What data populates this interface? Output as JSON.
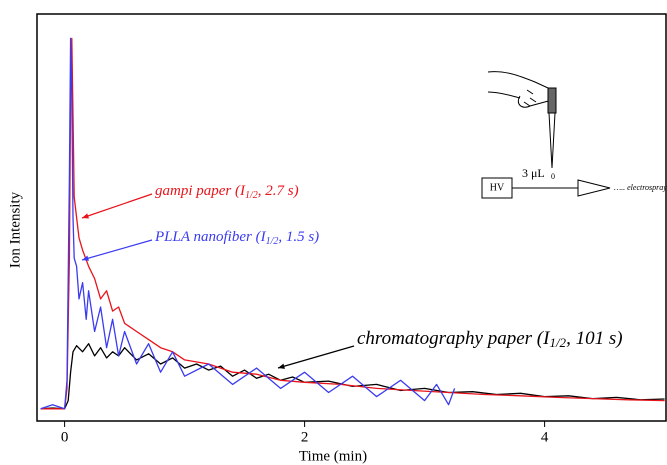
{
  "chart_data": {
    "type": "line",
    "xlabel": "Time (min)",
    "ylabel": "Ion Intensity",
    "xlim": [
      -0.23,
      5.02
    ],
    "xticks": [
      0,
      2,
      4
    ],
    "ylim": [
      0,
      100
    ],
    "series": [
      {
        "name": "chromatography paper",
        "color": "#000000",
        "x": [
          -0.2,
          -0.1,
          0,
          0.03,
          0.05,
          0.07,
          0.1,
          0.15,
          0.2,
          0.25,
          0.3,
          0.35,
          0.4,
          0.45,
          0.5,
          0.6,
          0.7,
          0.8,
          0.9,
          1.0,
          1.1,
          1.2,
          1.3,
          1.4,
          1.5,
          1.6,
          1.7,
          1.8,
          1.9,
          2.0,
          2.2,
          2.4,
          2.6,
          2.8,
          3.0,
          3.2,
          3.4,
          3.6,
          3.8,
          4.0,
          4.2,
          4.4,
          4.6,
          4.8,
          5.0
        ],
        "values": [
          3,
          3.2,
          3,
          5,
          12,
          17,
          18.5,
          17,
          19,
          16,
          18,
          15.5,
          17,
          16,
          18,
          15,
          16.5,
          14,
          15.5,
          13,
          14,
          12.5,
          13.5,
          11,
          12.5,
          10.5,
          11.5,
          10,
          10.8,
          9.5,
          9.8,
          8.5,
          9,
          7.5,
          8,
          7,
          7.2,
          6.5,
          6.8,
          6,
          6.2,
          5.5,
          5.8,
          5.2,
          5.4
        ]
      },
      {
        "name": "gampi paper",
        "color": "#e8141b",
        "x": [
          -0.2,
          -0.1,
          0,
          0.02,
          0.04,
          0.05,
          0.06,
          0.07,
          0.08,
          0.1,
          0.12,
          0.15,
          0.2,
          0.25,
          0.3,
          0.35,
          0.4,
          0.45,
          0.5,
          0.6,
          0.7,
          0.8,
          0.9,
          1.0,
          1.2,
          1.4,
          1.6,
          1.8,
          2.0,
          2.3,
          2.6,
          2.9,
          3.2,
          3.5,
          3.8,
          4.1,
          4.4,
          4.7,
          5.0
        ],
        "values": [
          3,
          3,
          3,
          8,
          40,
          80,
          94,
          75,
          55,
          50,
          45,
          42,
          38,
          35,
          30,
          32,
          27,
          28,
          24,
          22,
          20,
          18,
          17,
          15,
          14,
          12,
          11.5,
          10,
          9.5,
          9,
          8,
          7.5,
          7,
          6.5,
          6.2,
          5.8,
          5.5,
          5.2,
          5
        ]
      },
      {
        "name": "PLLA nanofiber",
        "color": "#3b3bf0",
        "x": [
          -0.2,
          -0.1,
          0,
          0.02,
          0.04,
          0.05,
          0.06,
          0.07,
          0.08,
          0.1,
          0.12,
          0.15,
          0.18,
          0.2,
          0.25,
          0.3,
          0.35,
          0.4,
          0.45,
          0.5,
          0.6,
          0.7,
          0.8,
          0.9,
          1.0,
          1.2,
          1.4,
          1.6,
          1.8,
          2.0,
          2.2,
          2.4,
          2.6,
          2.8,
          3.0,
          3.1,
          3.2,
          3.25
        ],
        "values": [
          3,
          4,
          3,
          10,
          60,
          94,
          80,
          50,
          40,
          38,
          30,
          34,
          25,
          32,
          22,
          28,
          18,
          25,
          16,
          22,
          14,
          19,
          12,
          17,
          11,
          14,
          9,
          13,
          8,
          12,
          7,
          11,
          6,
          10,
          5,
          9,
          4,
          8
        ]
      }
    ],
    "annotations": [
      {
        "text": "gampi paper (I",
        "sub": "1/2",
        "tail": ", 2.7 s)",
        "color": "#e8141b"
      },
      {
        "text": "PLLA nanofiber (I",
        "sub": "1/2",
        "tail": ", 1.5 s)",
        "color": "#3b3bf0"
      },
      {
        "text": "chromatography paper (I",
        "sub": "1/2",
        "tail": ", 101 s)",
        "color": "#000000"
      }
    ]
  },
  "inset": {
    "hv": "HV",
    "volume": "3 μL",
    "zero": "0",
    "label": "….. electrospray"
  }
}
